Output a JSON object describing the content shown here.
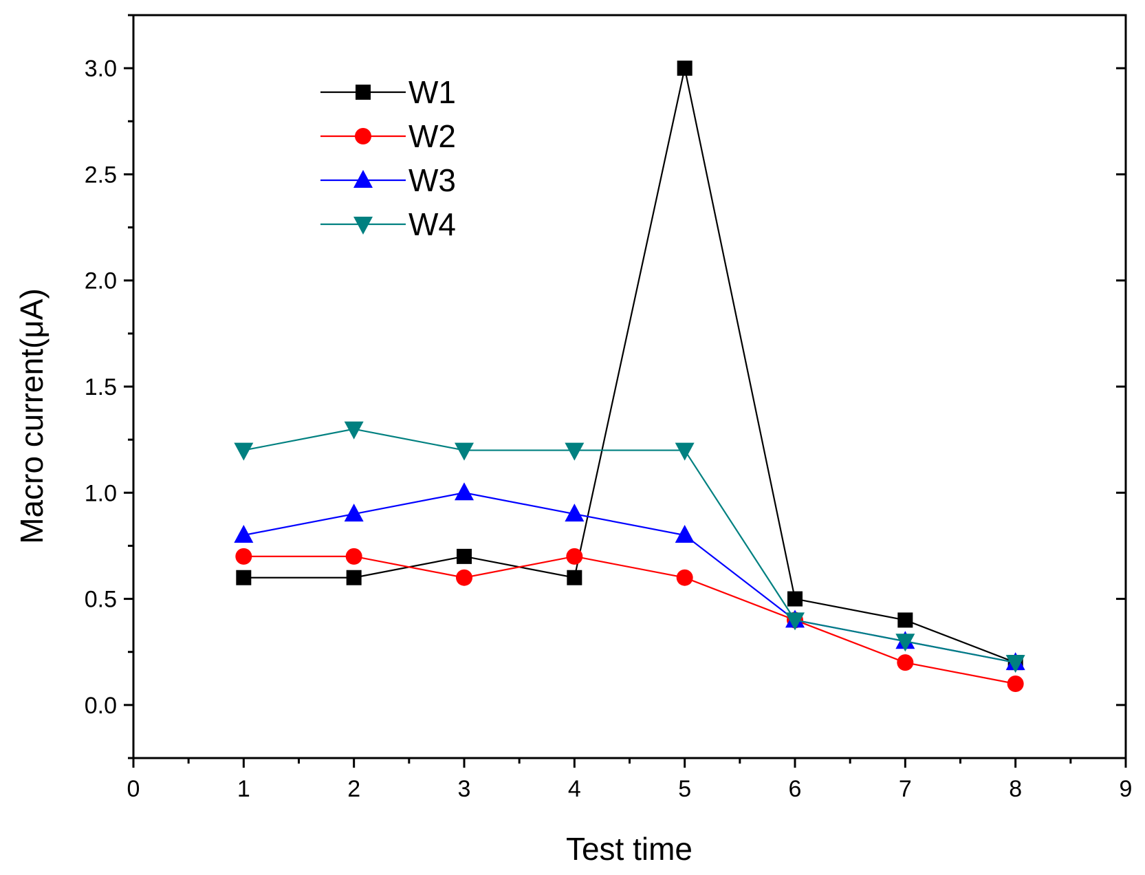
{
  "chart_data": {
    "type": "line",
    "title": "",
    "xlabel": "Test time",
    "ylabel": "Macro current(μA)",
    "xlim": [
      0,
      9
    ],
    "ylim": [
      -0.25,
      3.25
    ],
    "xticks": [
      0,
      1,
      2,
      3,
      4,
      5,
      6,
      7,
      8,
      9
    ],
    "yticks": [
      0.0,
      0.5,
      1.0,
      1.5,
      2.0,
      2.5,
      3.0
    ],
    "xtick_labels": [
      "0",
      "1",
      "2",
      "3",
      "4",
      "5",
      "6",
      "7",
      "8",
      "9"
    ],
    "ytick_labels": [
      "0.0",
      "0.5",
      "1.0",
      "1.5",
      "2.0",
      "2.5",
      "3.0"
    ],
    "grid": false,
    "legend_position": "top-left",
    "x": [
      1,
      2,
      3,
      4,
      5,
      6,
      7,
      8
    ],
    "series": [
      {
        "name": "W1",
        "color": "#000000",
        "marker": "square",
        "values": [
          0.6,
          0.6,
          0.7,
          0.6,
          3.0,
          0.5,
          0.4,
          0.2
        ]
      },
      {
        "name": "W2",
        "color": "#ff0000",
        "marker": "circle",
        "values": [
          0.7,
          0.7,
          0.6,
          0.7,
          0.6,
          0.4,
          0.2,
          0.1
        ]
      },
      {
        "name": "W3",
        "color": "#0000ff",
        "marker": "triangle-up",
        "values": [
          0.8,
          0.9,
          1.0,
          0.9,
          0.8,
          0.4,
          0.3,
          0.2
        ]
      },
      {
        "name": "W4",
        "color": "#008080",
        "marker": "triangle-down",
        "values": [
          1.2,
          1.3,
          1.2,
          1.2,
          1.2,
          0.4,
          0.3,
          0.2
        ]
      }
    ]
  }
}
